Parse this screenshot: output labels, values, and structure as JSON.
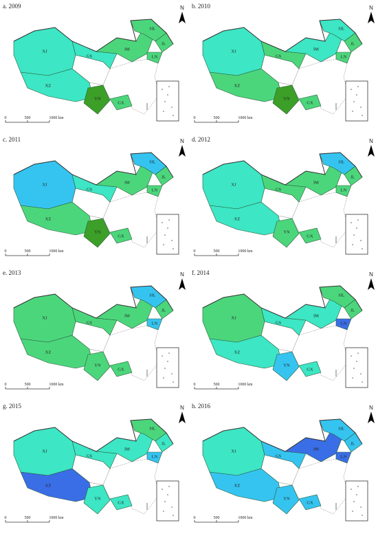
{
  "regions": [
    "XJ",
    "GS",
    "XZ",
    "YN",
    "GX",
    "IM",
    "HL",
    "JL",
    "LN"
  ],
  "scale_labels": [
    "0",
    "500",
    "1000 km"
  ],
  "north": "N",
  "panels": [
    {
      "label": "a. 2009",
      "colors": [
        "#3de6c4",
        "#3de6c4",
        "#3de6c4",
        "#3c9f28",
        "#4cd67c",
        "#4cd67c",
        "#4cd67c",
        "#4cd67c",
        "#4cd67c"
      ]
    },
    {
      "label": "b. 2010",
      "colors": [
        "#3de6c4",
        "#4cd67c",
        "#4cd67c",
        "#3c9f28",
        "#4cd67c",
        "#3de6c4",
        "#3de6c4",
        "#4cd67c",
        "#4cd67c"
      ]
    },
    {
      "label": "c. 2011",
      "colors": [
        "#35c4f0",
        "#3de6c4",
        "#4cd67c",
        "#3c9f28",
        "#4cd67c",
        "#4cd67c",
        "#35c4f0",
        "#4cd67c",
        "#4cd67c"
      ]
    },
    {
      "label": "d. 2012",
      "colors": [
        "#3de6c4",
        "#4cd67c",
        "#3de6c4",
        "#4cd67c",
        "#4cd67c",
        "#4cd67c",
        "#35c4f0",
        "#4cd67c",
        "#4cd67c"
      ]
    },
    {
      "label": "e. 2013",
      "colors": [
        "#4cd67c",
        "#4cd67c",
        "#4cd67c",
        "#4cd67c",
        "#4cd67c",
        "#4cd67c",
        "#35c4f0",
        "#4cd67c",
        "#35c4f0"
      ]
    },
    {
      "label": "f. 2014",
      "colors": [
        "#4cd67c",
        "#3de6c4",
        "#3de6c4",
        "#35c4f0",
        "#3de6c4",
        "#3de6c4",
        "#4cd67c",
        "#4cd67c",
        "#3a6ee6"
      ]
    },
    {
      "label": "g. 2015",
      "colors": [
        "#3de6c4",
        "#3de6c4",
        "#3a6ee6",
        "#3de6c4",
        "#3de6c4",
        "#3de6c4",
        "#4cd67c",
        "#3de6c4",
        "#35c4f0"
      ]
    },
    {
      "label": "h. 2016",
      "colors": [
        "#3de6c4",
        "#35c4f0",
        "#35c4f0",
        "#35c4f0",
        "#35c4f0",
        "#3a6ee6",
        "#35c4f0",
        "#35c4f0",
        "#3a6ee6"
      ]
    }
  ]
}
